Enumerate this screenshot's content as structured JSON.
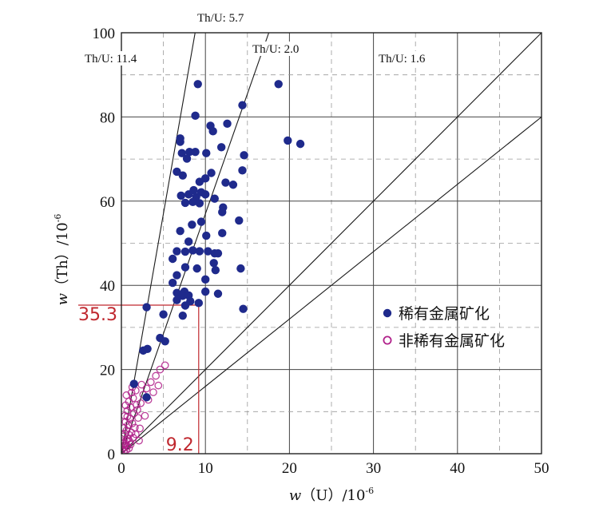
{
  "chart_data": {
    "type": "scatter",
    "title": "",
    "xlabel": {
      "var": "w",
      "sym": "（U）",
      "unit": "/10",
      "exp": "-6"
    },
    "ylabel": {
      "var": "w",
      "sym": "（Th）",
      "unit": "/10",
      "exp": "-6"
    },
    "xlim": [
      0,
      50
    ],
    "ylim": [
      0,
      100
    ],
    "xticks": [
      "0",
      "10",
      "20",
      "30",
      "40",
      "50"
    ],
    "yticks": [
      "0",
      "20",
      "40",
      "60",
      "80",
      "100"
    ],
    "grid": true,
    "legend_position": "right",
    "ratio_lines": [
      {
        "label": "Th/U: 11.4",
        "slope": 11.4
      },
      {
        "label": "Th/U: 5.7",
        "slope": 5.7
      },
      {
        "label": "Th/U: 2.0",
        "slope": 2.0
      },
      {
        "label": "Th/U: 1.6",
        "slope": 1.6
      }
    ],
    "threshold": {
      "x": 9.2,
      "y": 35.3,
      "x_label": "9.2",
      "y_label": "35.3",
      "color": "#c0282f"
    },
    "series": [
      {
        "name": "稀有金属矿化",
        "marker": "filled-circle",
        "color": "#1f2a8c",
        "points": [
          [
            9.1,
            87.8
          ],
          [
            18.7,
            87.8
          ],
          [
            14.4,
            82.8
          ],
          [
            8.8,
            80.3
          ],
          [
            10.6,
            77.9
          ],
          [
            12.6,
            78.4
          ],
          [
            10.9,
            76.6
          ],
          [
            7.0,
            74.9
          ],
          [
            7.0,
            74.1
          ],
          [
            19.8,
            74.4
          ],
          [
            21.3,
            73.6
          ],
          [
            7.2,
            71.4
          ],
          [
            8.1,
            71.7
          ],
          [
            8.8,
            71.7
          ],
          [
            10.1,
            71.4
          ],
          [
            11.9,
            72.8
          ],
          [
            14.6,
            70.9
          ],
          [
            7.8,
            70.1
          ],
          [
            6.6,
            67.0
          ],
          [
            7.3,
            66.1
          ],
          [
            10.0,
            65.4
          ],
          [
            10.7,
            66.7
          ],
          [
            14.4,
            67.3
          ],
          [
            9.3,
            64.6
          ],
          [
            12.4,
            64.4
          ],
          [
            13.3,
            63.9
          ],
          [
            8.6,
            62.6
          ],
          [
            7.1,
            61.3
          ],
          [
            8.0,
            61.6
          ],
          [
            8.9,
            61.0
          ],
          [
            9.5,
            62.1
          ],
          [
            10.0,
            61.6
          ],
          [
            11.1,
            60.6
          ],
          [
            7.6,
            59.6
          ],
          [
            8.5,
            59.8
          ],
          [
            9.3,
            59.5
          ],
          [
            12.1,
            58.5
          ],
          [
            12.0,
            57.4
          ],
          [
            9.5,
            55.1
          ],
          [
            14.0,
            55.4
          ],
          [
            8.4,
            54.4
          ],
          [
            7.0,
            52.9
          ],
          [
            10.1,
            51.8
          ],
          [
            12.0,
            52.4
          ],
          [
            8.0,
            50.4
          ],
          [
            6.6,
            48.1
          ],
          [
            7.6,
            48.0
          ],
          [
            8.5,
            48.3
          ],
          [
            9.3,
            48.1
          ],
          [
            10.3,
            48.1
          ],
          [
            11.1,
            47.6
          ],
          [
            11.5,
            47.6
          ],
          [
            6.1,
            46.3
          ],
          [
            11.0,
            45.3
          ],
          [
            7.6,
            44.3
          ],
          [
            9.0,
            44.0
          ],
          [
            11.2,
            43.6
          ],
          [
            14.2,
            44.0
          ],
          [
            6.6,
            42.4
          ],
          [
            10.0,
            41.4
          ],
          [
            6.1,
            40.6
          ],
          [
            7.5,
            38.5
          ],
          [
            10.0,
            38.5
          ],
          [
            6.6,
            38.2
          ],
          [
            7.3,
            37.5
          ],
          [
            8.0,
            37.6
          ],
          [
            6.6,
            36.5
          ],
          [
            11.5,
            38.0
          ],
          [
            9.2,
            35.8
          ],
          [
            8.2,
            36.2
          ],
          [
            7.6,
            35.2
          ],
          [
            3.0,
            34.8
          ],
          [
            14.5,
            34.4
          ],
          [
            5.0,
            33.1
          ],
          [
            7.3,
            32.8
          ],
          [
            4.6,
            27.5
          ],
          [
            5.2,
            26.7
          ],
          [
            2.6,
            24.5
          ],
          [
            3.1,
            24.9
          ],
          [
            1.5,
            16.6
          ],
          [
            3.0,
            13.4
          ]
        ]
      },
      {
        "name": "非稀有金属矿化",
        "marker": "open-circle",
        "color": "#b0208a",
        "points": [
          [
            0.3,
            1.5
          ],
          [
            0.5,
            2.4
          ],
          [
            0.6,
            3.2
          ],
          [
            0.4,
            2.0
          ],
          [
            0.8,
            3.5
          ],
          [
            0.7,
            1.8
          ],
          [
            0.2,
            4.1
          ],
          [
            0.9,
            4.5
          ],
          [
            1.0,
            2.9
          ],
          [
            0.6,
            5.5
          ],
          [
            1.2,
            5.0
          ],
          [
            0.3,
            6.1
          ],
          [
            0.8,
            6.8
          ],
          [
            1.3,
            7.2
          ],
          [
            0.5,
            7.6
          ],
          [
            1.0,
            8.3
          ],
          [
            0.4,
            9.0
          ],
          [
            1.5,
            9.6
          ],
          [
            0.7,
            10.2
          ],
          [
            1.1,
            11.0
          ],
          [
            1.8,
            11.6
          ],
          [
            0.9,
            12.4
          ],
          [
            1.4,
            13.2
          ],
          [
            0.6,
            13.9
          ],
          [
            1.2,
            14.5
          ],
          [
            1.7,
            15.0
          ],
          [
            0.2,
            3.0
          ],
          [
            0.4,
            4.8
          ],
          [
            1.6,
            6.2
          ],
          [
            2.0,
            8.5
          ],
          [
            1.9,
            10.4
          ],
          [
            2.3,
            12.0
          ],
          [
            2.6,
            14.0
          ],
          [
            3.0,
            15.5
          ],
          [
            3.5,
            17.0
          ],
          [
            4.1,
            18.5
          ],
          [
            4.6,
            20.0
          ],
          [
            5.2,
            21.0
          ],
          [
            2.8,
            9.0
          ],
          [
            2.2,
            6.0
          ],
          [
            0.1,
            1.0
          ],
          [
            0.3,
            0.6
          ],
          [
            0.6,
            0.9
          ],
          [
            1.4,
            3.8
          ],
          [
            1.7,
            4.6
          ],
          [
            0.9,
            1.3
          ],
          [
            0.5,
            11.5
          ],
          [
            1.3,
            15.8
          ],
          [
            2.4,
            16.4
          ],
          [
            3.2,
            12.8
          ],
          [
            3.8,
            14.6
          ],
          [
            4.4,
            16.2
          ],
          [
            2.1,
            3.1
          ],
          [
            0.7,
            8.8
          ],
          [
            1.1,
            2.2
          ],
          [
            0.2,
            2.4
          ]
        ]
      }
    ]
  }
}
